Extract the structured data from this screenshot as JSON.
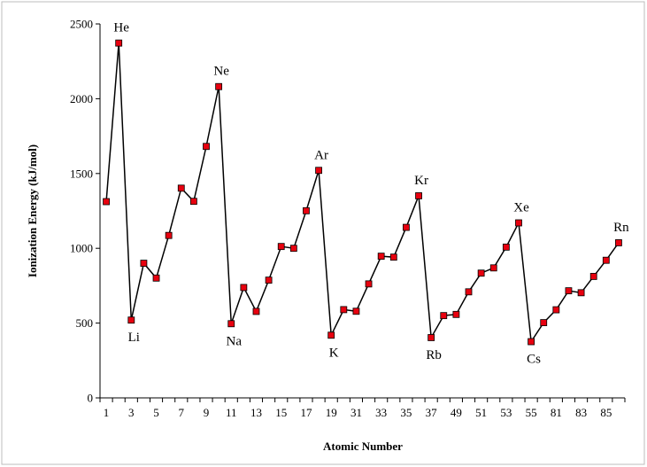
{
  "chart_data": {
    "type": "line",
    "title": "",
    "xlabel": "Atomic Number",
    "ylabel": "Ionization Energy (kJ/mol)",
    "ylim": [
      0,
      2500
    ],
    "yticks": [
      0,
      500,
      1000,
      1500,
      2000,
      2500
    ],
    "grid": false,
    "legend": "none",
    "series_color": "#000000",
    "marker_color": "#e8000f",
    "categories": [
      "1",
      "2",
      "3",
      "4",
      "5",
      "6",
      "7",
      "8",
      "9",
      "10",
      "11",
      "12",
      "13",
      "14",
      "15",
      "16",
      "17",
      "18",
      "19",
      "20",
      "31",
      "32",
      "33",
      "34",
      "35",
      "36",
      "37",
      "38",
      "49",
      "50",
      "51",
      "52",
      "53",
      "54",
      "55",
      "56",
      "81",
      "82",
      "83",
      "84",
      "85",
      "86"
    ],
    "xtick_labels": [
      "1",
      "3",
      "5",
      "7",
      "9",
      "11",
      "13",
      "15",
      "17",
      "19",
      "31",
      "33",
      "35",
      "37",
      "49",
      "51",
      "53",
      "55",
      "81",
      "83",
      "85"
    ],
    "values": [
      1312,
      2372,
      520,
      900,
      801,
      1086,
      1402,
      1314,
      1681,
      2081,
      496,
      738,
      578,
      787,
      1012,
      1000,
      1251,
      1521,
      419,
      590,
      579,
      762,
      947,
      941,
      1140,
      1351,
      403,
      550,
      558,
      709,
      834,
      869,
      1008,
      1170,
      376,
      503,
      589,
      716,
      703,
      812,
      920,
      1037
    ],
    "annotations": [
      {
        "label": "He",
        "index": 1,
        "position": "above"
      },
      {
        "label": "Ne",
        "index": 9,
        "position": "above"
      },
      {
        "label": "Ar",
        "index": 17,
        "position": "above"
      },
      {
        "label": "Kr",
        "index": 25,
        "position": "above"
      },
      {
        "label": "Xe",
        "index": 33,
        "position": "above"
      },
      {
        "label": "Rn",
        "index": 41,
        "position": "above"
      },
      {
        "label": "Li",
        "index": 2,
        "position": "below"
      },
      {
        "label": "Na",
        "index": 10,
        "position": "below"
      },
      {
        "label": "K",
        "index": 18,
        "position": "below"
      },
      {
        "label": "Rb",
        "index": 26,
        "position": "below"
      },
      {
        "label": "Cs",
        "index": 34,
        "position": "below"
      }
    ]
  }
}
